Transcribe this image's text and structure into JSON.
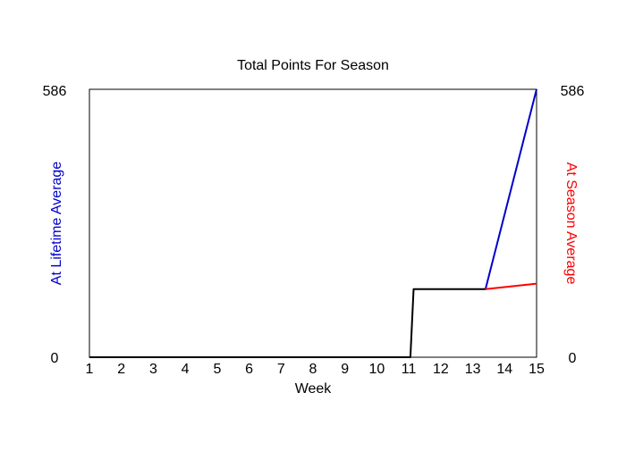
{
  "chart_data": {
    "type": "line",
    "title": "Total Points For Season",
    "xlabel": "Week",
    "ylabel_left": "At Lifetime Average",
    "ylabel_right": "At Season Average",
    "x_ticks": [
      1,
      2,
      3,
      4,
      5,
      6,
      7,
      8,
      9,
      10,
      11,
      12,
      13,
      14,
      15
    ],
    "x_tick_labels": [
      "1",
      "2",
      "3",
      "4",
      "5",
      "6",
      "7",
      "8",
      "9",
      "10",
      "11",
      "12",
      "13",
      "14",
      "15"
    ],
    "xlim": [
      1,
      15
    ],
    "ylim": [
      0,
      586
    ],
    "y_tick_labels_left": [
      "0",
      "586"
    ],
    "y_tick_labels_right": [
      "0",
      "586"
    ],
    "grid": false,
    "series": [
      {
        "name": "",
        "color": "#000000",
        "x": [
          1,
          11.05,
          11.15,
          13.4
        ],
        "y": [
          0,
          0,
          149,
          149
        ]
      },
      {
        "name": "",
        "color": "#0000cc",
        "x": [
          13.4,
          15
        ],
        "y": [
          149,
          586
        ]
      },
      {
        "name": "",
        "color": "#ff0000",
        "x": [
          13.4,
          15
        ],
        "y": [
          149,
          161
        ]
      }
    ]
  }
}
